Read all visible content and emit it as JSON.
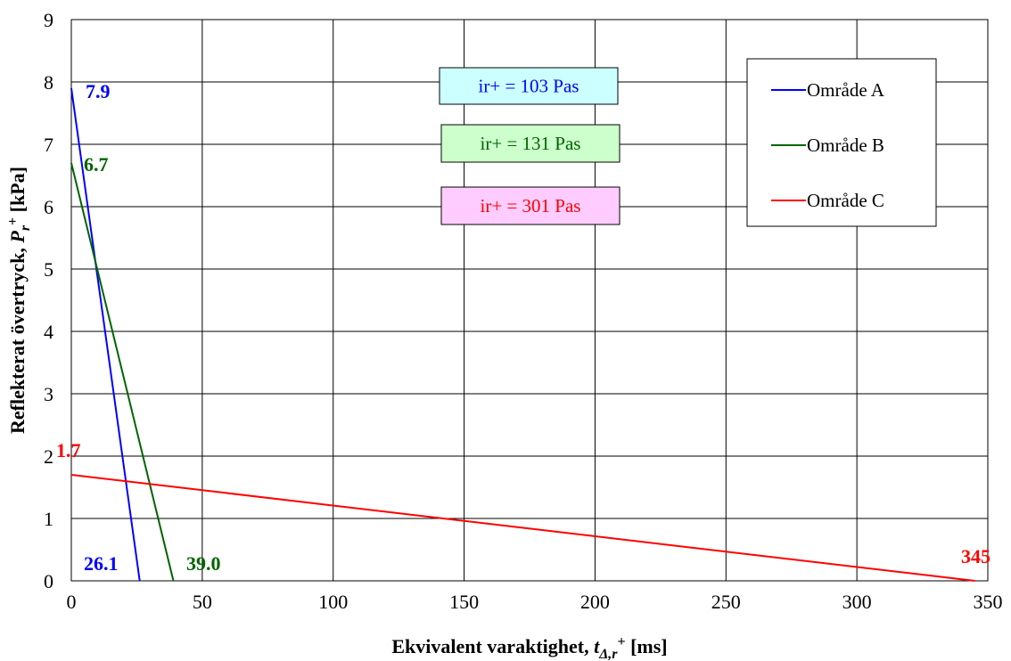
{
  "chart_data": {
    "type": "line",
    "xlabel": {
      "main": "Ekvivalent varaktighet, ",
      "var": "t",
      "sub": "Δ,r",
      "sup": "+",
      "unit": " [ms]"
    },
    "ylabel": {
      "main": "Reflekterat övertryck, ",
      "var": "P",
      "sub": "r",
      "sup": "+",
      "unit": " [kPa]"
    },
    "xlim": [
      0,
      350
    ],
    "ylim": [
      0,
      9
    ],
    "xticks": [
      0,
      50,
      100,
      150,
      200,
      250,
      300,
      350
    ],
    "yticks": [
      0,
      1,
      2,
      3,
      4,
      5,
      6,
      7,
      8,
      9
    ],
    "grid": true,
    "legend_position": "top-right",
    "series": [
      {
        "name": "Område A",
        "color": "#0000ff",
        "points": [
          [
            0,
            7.9
          ],
          [
            26.1,
            0
          ]
        ]
      },
      {
        "name": "Område B",
        "color": "#006400",
        "points": [
          [
            0,
            6.7
          ],
          [
            39.0,
            0
          ]
        ]
      },
      {
        "name": "Område C",
        "color": "#ff0000",
        "points": [
          [
            0,
            1.7
          ],
          [
            345,
            0
          ]
        ]
      }
    ],
    "annotations": [
      {
        "text": "7.9",
        "color": "#0000ff"
      },
      {
        "text": "6.7",
        "color": "#006400"
      },
      {
        "text": "1.7",
        "color": "#ff0000"
      },
      {
        "text": "26.1",
        "color": "#0000ff"
      },
      {
        "text": "39.0",
        "color": "#006400"
      },
      {
        "text": "345",
        "color": "#ff0000"
      }
    ],
    "info_boxes": [
      {
        "text": "ir+ = 103 Pas",
        "text_color": "#0000ff",
        "fill": "#ccffff"
      },
      {
        "text": "ir+ = 131 Pas",
        "text_color": "#006400",
        "fill": "#ccffcc"
      },
      {
        "text": "ir+ = 301 Pas",
        "text_color": "#ff0000",
        "fill": "#ffccff"
      }
    ]
  }
}
